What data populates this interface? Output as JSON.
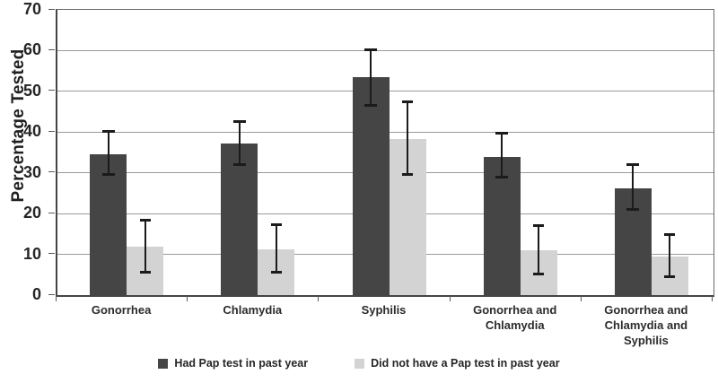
{
  "chart_data": {
    "type": "bar",
    "title": "",
    "xlabel": "",
    "ylabel": "Percentage Tested",
    "ylim": [
      0,
      70
    ],
    "yticks": [
      0,
      10,
      20,
      30,
      40,
      50,
      60,
      70
    ],
    "grid": true,
    "legend_position": "bottom",
    "error_bars": true,
    "categories": [
      "Gonorrhea",
      "Chlamydia",
      "Syphilis",
      "Gonorrhea and Chlamydia",
      "Gonorrhea and Chlamydia and Syphilis"
    ],
    "series": [
      {
        "name": "Had Pap test in past year",
        "color": "#454545",
        "values": [
          34.5,
          37.2,
          53.5,
          34.0,
          26.3
        ],
        "error_low": [
          29.5,
          32.0,
          46.5,
          28.9,
          20.9
        ],
        "error_high": [
          40.2,
          42.8,
          60.3,
          39.9,
          32.2
        ]
      },
      {
        "name": "Did not have a Pap test in past year",
        "color": "#d3d3d3",
        "values": [
          11.8,
          11.3,
          38.2,
          11.0,
          9.5
        ],
        "error_low": [
          5.4,
          5.5,
          29.5,
          5.1,
          4.4
        ],
        "error_high": [
          18.5,
          17.5,
          47.5,
          17.2,
          15.0
        ]
      }
    ]
  },
  "colors": {
    "background": "#ffffff",
    "gridline": "#9a9a9a",
    "axis": "#454545",
    "error_bar": "#1b1b1b",
    "text": "#262626"
  }
}
